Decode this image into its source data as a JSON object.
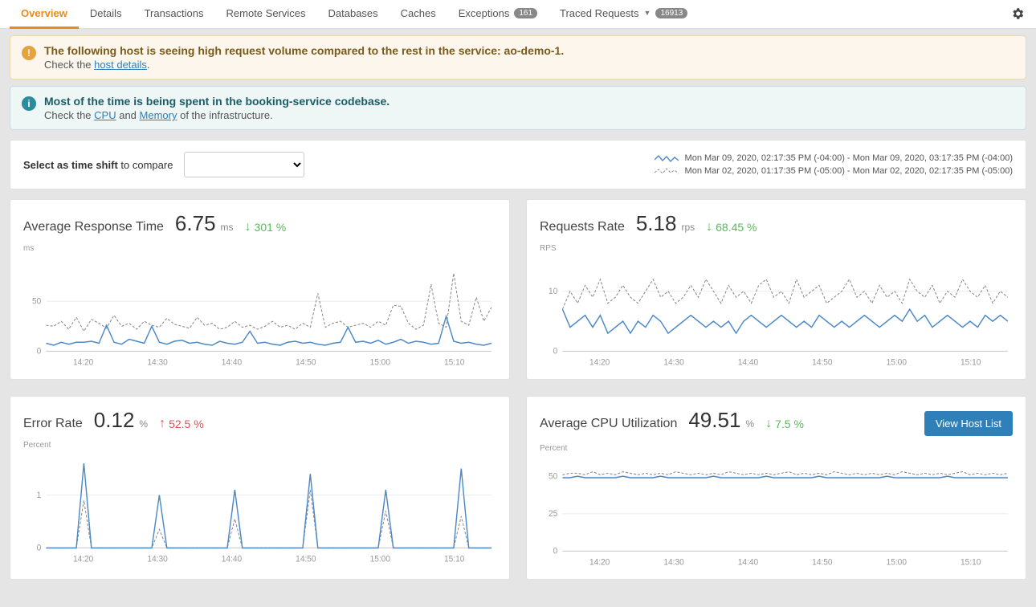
{
  "tabs": [
    {
      "label": "Overview",
      "active": true
    },
    {
      "label": "Details"
    },
    {
      "label": "Transactions"
    },
    {
      "label": "Remote Services"
    },
    {
      "label": "Databases"
    },
    {
      "label": "Caches"
    },
    {
      "label": "Exceptions",
      "badge": "161"
    },
    {
      "label": "Traced Requests",
      "badge": "16913",
      "dropdown": true
    }
  ],
  "alerts": {
    "warn": {
      "title": "The following host is seeing high request volume compared to the rest in the service: ao-demo-1.",
      "sub_pre": "Check the ",
      "link": "host details",
      "sub_post": "."
    },
    "info": {
      "title": "Most of the time is being spent in the booking-service codebase.",
      "sub_pre": "Check the ",
      "link1": "CPU",
      "mid": " and ",
      "link2": "Memory",
      "sub_post": " of the infrastructure."
    }
  },
  "timebar": {
    "label_bold": "Select as time shift",
    "label_rest": " to compare",
    "range_current": "Mon Mar 09, 2020, 02:17:35 PM (-04:00) - Mon Mar 09, 2020, 03:17:35 PM (-04:00)",
    "range_prev": "Mon Mar 02, 2020, 01:17:35 PM (-05:00) - Mon Mar 02, 2020, 02:17:35 PM (-05:00)"
  },
  "xticks": [
    "14:20",
    "14:30",
    "14:40",
    "14:50",
    "15:00",
    "15:10"
  ],
  "colors": {
    "solid": "#4a88c7",
    "dashed": "#888888",
    "bg": "#ffffff",
    "grid": "#eeeeee",
    "green": "#5cb85c",
    "red": "#d9534f"
  },
  "cards": {
    "resp": {
      "title": "Average Response Time",
      "value": "6.75",
      "unit": "ms",
      "delta_dir": "down",
      "delta": "301 %",
      "ylabel": "ms",
      "ymax": 90,
      "yticks": [
        50
      ],
      "solid": [
        8,
        6,
        9,
        7,
        9,
        9,
        10,
        8,
        26,
        9,
        7,
        12,
        10,
        8,
        25,
        9,
        7,
        10,
        11,
        8,
        9,
        7,
        6,
        10,
        8,
        7,
        9,
        20,
        8,
        9,
        7,
        6,
        9,
        10,
        8,
        9,
        7,
        6,
        8,
        9,
        24,
        9,
        10,
        8,
        11,
        7,
        9,
        12,
        8,
        10,
        9,
        7,
        8,
        35,
        10,
        8,
        9,
        7,
        6,
        8
      ],
      "dashed": [
        26,
        25,
        30,
        22,
        34,
        20,
        32,
        28,
        23,
        36,
        25,
        28,
        22,
        30,
        26,
        24,
        33,
        27,
        25,
        23,
        34,
        26,
        28,
        22,
        24,
        30,
        24,
        26,
        22,
        25,
        30,
        24,
        26,
        22,
        28,
        24,
        58,
        24,
        28,
        30,
        24,
        26,
        28,
        24,
        30,
        26,
        46,
        45,
        28,
        22,
        26,
        67,
        28,
        24,
        78,
        30,
        26,
        54,
        30,
        44
      ]
    },
    "req": {
      "title": "Requests Rate",
      "value": "5.18",
      "unit": "rps",
      "delta_dir": "down",
      "delta": "68.45 %",
      "ylabel": "RPS",
      "ymax": 15,
      "yticks": [
        10
      ],
      "solid": [
        7,
        4,
        5,
        6,
        4,
        6,
        3,
        4,
        5,
        3,
        5,
        4,
        6,
        5,
        3,
        4,
        5,
        6,
        5,
        4,
        5,
        4,
        5,
        3,
        5,
        6,
        5,
        4,
        5,
        6,
        5,
        4,
        5,
        4,
        6,
        5,
        4,
        5,
        4,
        5,
        6,
        5,
        4,
        5,
        6,
        5,
        7,
        5,
        6,
        4,
        5,
        6,
        5,
        4,
        5,
        4,
        6,
        5,
        6,
        5
      ],
      "dashed": [
        7,
        10,
        8,
        11,
        9,
        12,
        8,
        9,
        11,
        9,
        8,
        10,
        12,
        9,
        10,
        8,
        9,
        11,
        9,
        12,
        10,
        8,
        11,
        9,
        10,
        8,
        11,
        12,
        9,
        10,
        8,
        12,
        9,
        10,
        11,
        8,
        9,
        10,
        12,
        9,
        10,
        8,
        11,
        9,
        10,
        8,
        12,
        10,
        9,
        11,
        8,
        10,
        9,
        12,
        10,
        9,
        11,
        8,
        10,
        9
      ]
    },
    "err": {
      "title": "Error Rate",
      "value": "0.12",
      "unit": "%",
      "delta_dir": "up",
      "delta": "52.5 %",
      "ylabel": "Percent",
      "ymax": 1.7,
      "yticks": [
        1
      ],
      "solid": [
        0,
        0,
        0,
        0,
        0,
        1.6,
        0,
        0,
        0,
        0,
        0,
        0,
        0,
        0,
        0,
        1.0,
        0,
        0,
        0,
        0,
        0,
        0,
        0,
        0,
        0,
        1.1,
        0,
        0,
        0,
        0,
        0,
        0,
        0,
        0,
        0,
        1.4,
        0,
        0,
        0,
        0,
        0,
        0,
        0,
        0,
        0,
        1.1,
        0,
        0,
        0,
        0,
        0,
        0,
        0,
        0,
        0,
        1.5,
        0,
        0,
        0,
        0
      ],
      "dashed": [
        0,
        0,
        0,
        0,
        0,
        0.9,
        0,
        0,
        0,
        0,
        0,
        0,
        0,
        0,
        0,
        0.35,
        0,
        0,
        0,
        0,
        0,
        0,
        0,
        0,
        0,
        0.55,
        0,
        0,
        0,
        0,
        0,
        0,
        0,
        0,
        0,
        1.1,
        0,
        0,
        0,
        0,
        0,
        0,
        0,
        0,
        0,
        0.7,
        0,
        0,
        0,
        0,
        0,
        0,
        0,
        0,
        0,
        0.6,
        0,
        0,
        0,
        0
      ]
    },
    "cpu": {
      "title": "Average CPU Utilization",
      "value": "49.51",
      "unit": "%",
      "delta_dir": "down",
      "delta": "7.5 %",
      "ylabel": "Percent",
      "ymax": 60,
      "yticks": [
        25,
        50
      ],
      "button": "View Host List",
      "solid": [
        49,
        49,
        50,
        49,
        49,
        49,
        49,
        49,
        50,
        49,
        49,
        49,
        49,
        50,
        49,
        49,
        49,
        49,
        49,
        49,
        50,
        49,
        49,
        49,
        49,
        49,
        49,
        50,
        49,
        49,
        49,
        49,
        49,
        49,
        50,
        49,
        49,
        49,
        49,
        49,
        49,
        49,
        49,
        50,
        49,
        49,
        49,
        49,
        49,
        49,
        49,
        50,
        49,
        49,
        49,
        49,
        49,
        49,
        49,
        49
      ],
      "dashed": [
        51,
        52,
        52,
        51,
        53,
        51,
        52,
        51,
        53,
        52,
        51,
        52,
        51,
        52,
        51,
        53,
        52,
        51,
        52,
        51,
        52,
        51,
        53,
        52,
        51,
        52,
        51,
        52,
        51,
        52,
        53,
        51,
        52,
        51,
        52,
        51,
        53,
        52,
        51,
        52,
        51,
        52,
        51,
        52,
        51,
        53,
        52,
        51,
        52,
        51,
        52,
        51,
        52,
        53,
        51,
        52,
        51,
        52,
        51,
        52
      ]
    }
  }
}
